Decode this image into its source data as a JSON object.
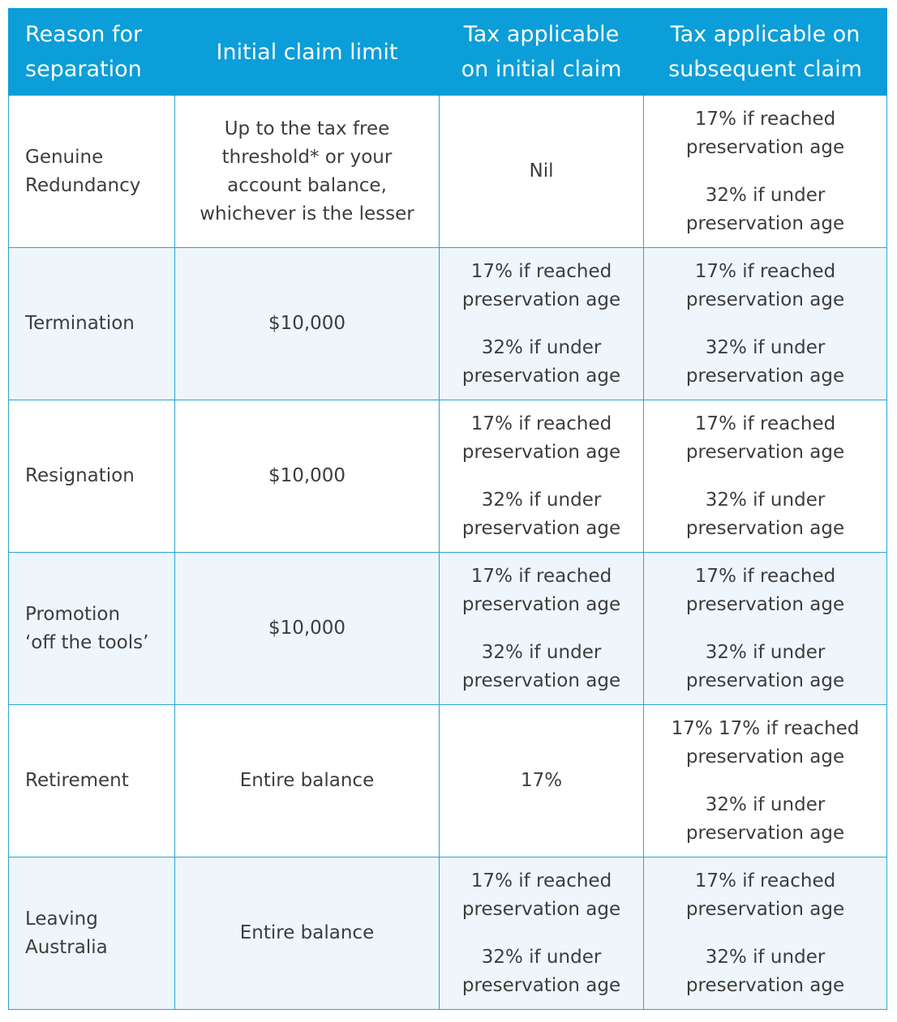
{
  "headers": {
    "reason": "Reason for\nseparation",
    "initial_limit": "Initial claim limit",
    "tax_initial": "Tax applicable\non initial claim",
    "tax_subsequent": "Tax applicable on\nsubsequent claim"
  },
  "rows": [
    {
      "reason": "Genuine\nRedundancy",
      "initial_limit": "Up to the tax free\nthreshold* or your\naccount balance,\nwhichever is the lesser",
      "tax_initial": [
        "Nil"
      ],
      "tax_subsequent": [
        "17% if reached\npreservation age",
        "32% if under\npreservation age"
      ]
    },
    {
      "reason": "Termination",
      "initial_limit": "$10,000",
      "tax_initial": [
        "17% if reached\npreservation age",
        "32% if under\npreservation age"
      ],
      "tax_subsequent": [
        "17% if reached\npreservation age",
        "32% if under\npreservation age"
      ]
    },
    {
      "reason": "Resignation",
      "initial_limit": "$10,000",
      "tax_initial": [
        "17% if reached\npreservation age",
        "32% if under\npreservation age"
      ],
      "tax_subsequent": [
        "17% if reached\npreservation age",
        "32% if under\npreservation age"
      ]
    },
    {
      "reason": "Promotion\n‘off the tools’",
      "initial_limit": "$10,000",
      "tax_initial": [
        "17% if reached\npreservation age",
        "32% if under\npreservation age"
      ],
      "tax_subsequent": [
        "17% if reached\npreservation age",
        "32% if under\npreservation age"
      ]
    },
    {
      "reason": "Retirement",
      "initial_limit": "Entire balance",
      "tax_initial": [
        "17%"
      ],
      "tax_subsequent": [
        "17% 17% if reached\npreservation age",
        "32% if under\npreservation age"
      ]
    },
    {
      "reason": "Leaving\nAustralia",
      "initial_limit": "Entire balance",
      "tax_initial": [
        "17% if reached\npreservation age",
        "32% if under\npreservation age"
      ],
      "tax_subsequent": [
        "17% if reached\npreservation age",
        "32% if under\npreservation age"
      ]
    }
  ],
  "colors": {
    "header_bg": "#0b9ed8",
    "header_text": "#ffffff",
    "border": "#29a4d8",
    "alt_row_bg": "#eef5fb",
    "body_text": "#3d3d3d"
  }
}
